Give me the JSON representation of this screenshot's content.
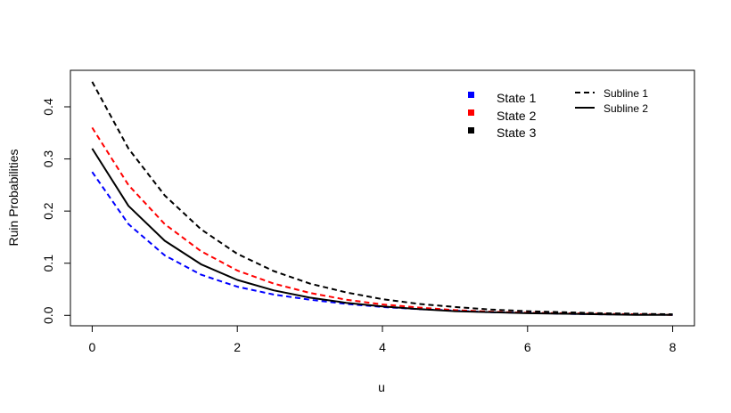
{
  "chart_data": {
    "type": "line",
    "title": "",
    "xlabel": "u",
    "ylabel": "Ruin Probabilities",
    "xlim": [
      -0.3,
      8.3
    ],
    "ylim": [
      -0.02,
      0.47
    ],
    "x_ticks": [
      0,
      2,
      4,
      6,
      8
    ],
    "y_ticks": [
      0.0,
      0.1,
      0.2,
      0.3,
      0.4
    ],
    "x_tick_labels": [
      "0",
      "2",
      "4",
      "6",
      "8"
    ],
    "y_tick_labels": [
      "0.0",
      "0.1",
      "0.2",
      "0.3",
      "0.4"
    ],
    "grid": false,
    "legend_states": [
      {
        "label": "State 1",
        "color": "#0000ff"
      },
      {
        "label": "State 2",
        "color": "#ff0000"
      },
      {
        "label": "State 3",
        "color": "#000000"
      }
    ],
    "legend_sublines": [
      {
        "label": "Subline 1",
        "style": "dashed"
      },
      {
        "label": "Subline 2",
        "style": "solid"
      }
    ],
    "legend_placement": "top-right",
    "x": [
      0,
      0.5,
      1,
      1.5,
      2,
      2.5,
      3,
      3.5,
      4,
      4.5,
      5,
      5.5,
      6,
      6.5,
      7,
      7.5,
      8
    ],
    "series": [
      {
        "color": "#0000ff",
        "style": "dashed",
        "values": [
          0.275,
          0.175,
          0.115,
          0.078,
          0.055,
          0.04,
          0.03,
          0.022,
          0.016,
          0.012,
          0.009,
          0.006,
          0.005,
          0.003,
          0.002,
          0.002,
          0.001
        ]
      },
      {
        "color": "#ff0000",
        "style": "dashed",
        "values": [
          0.36,
          0.25,
          0.175,
          0.123,
          0.086,
          0.061,
          0.043,
          0.03,
          0.021,
          0.015,
          0.01,
          0.007,
          0.005,
          0.004,
          0.003,
          0.002,
          0.001
        ]
      },
      {
        "color": "#000000",
        "style": "dashed",
        "values": [
          0.448,
          0.32,
          0.23,
          0.165,
          0.118,
          0.085,
          0.061,
          0.044,
          0.031,
          0.022,
          0.016,
          0.011,
          0.008,
          0.006,
          0.004,
          0.003,
          0.002
        ]
      },
      {
        "color": "#000000",
        "style": "solid",
        "values": [
          0.32,
          0.21,
          0.143,
          0.098,
          0.068,
          0.048,
          0.034,
          0.024,
          0.017,
          0.012,
          0.008,
          0.006,
          0.004,
          0.003,
          0.002,
          0.001,
          0.001
        ]
      }
    ]
  }
}
